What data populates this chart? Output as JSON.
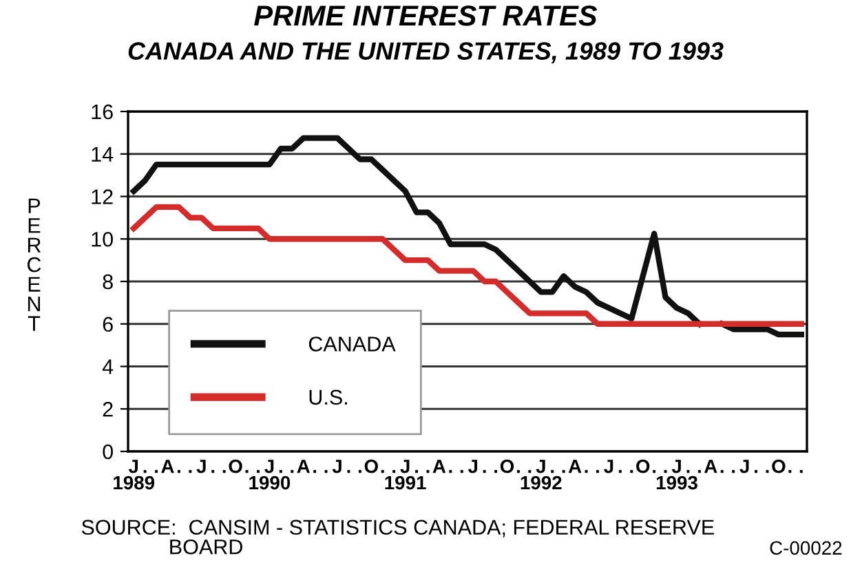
{
  "chart_data": {
    "type": "line",
    "title": "PRIME INTEREST RATES",
    "subtitle": "CANADA AND THE UNITED STATES, 1989 TO 1993",
    "ylabel": "PERCENT",
    "categories": [
      "J\n1989",
      ".",
      ".",
      "A",
      ".",
      ".",
      "J",
      ".",
      ".",
      "O",
      ".",
      ".",
      "J\n1990",
      ".",
      ".",
      "A",
      ".",
      ".",
      "J",
      ".",
      ".",
      "O",
      ".",
      ".",
      "J\n1991",
      ".",
      ".",
      "A",
      ".",
      ".",
      "J",
      ".",
      ".",
      "O",
      ".",
      ".",
      "J\n1992",
      ".",
      ".",
      "A",
      ".",
      ".",
      "J",
      ".",
      ".",
      "O",
      ".",
      ".",
      "J\n1993",
      ".",
      ".",
      "A",
      ".",
      ".",
      "J",
      ".",
      ".",
      "O",
      ".",
      "."
    ],
    "series": [
      {
        "name": "CANADA",
        "color": "#111111",
        "values": [
          12.25,
          12.75,
          13.5,
          13.5,
          13.5,
          13.5,
          13.5,
          13.5,
          13.5,
          13.5,
          13.5,
          13.5,
          13.5,
          14.25,
          14.25,
          14.75,
          14.75,
          14.75,
          14.75,
          14.25,
          13.75,
          13.75,
          13.25,
          12.75,
          12.25,
          11.25,
          11.25,
          10.75,
          9.75,
          9.75,
          9.75,
          9.75,
          9.5,
          9.0,
          8.5,
          8.0,
          7.5,
          7.5,
          8.25,
          7.75,
          7.5,
          7.0,
          6.75,
          6.5,
          6.25,
          8.25,
          10.25,
          7.25,
          6.75,
          6.5,
          6.0,
          null,
          6.0,
          5.75,
          5.75,
          5.75,
          5.75,
          5.5,
          5.5,
          5.5
        ]
      },
      {
        "name": "U.S.",
        "color": "#d42b2b",
        "values": [
          10.5,
          11.0,
          11.5,
          11.5,
          11.5,
          11.0,
          11.0,
          10.5,
          10.5,
          10.5,
          10.5,
          10.5,
          10.0,
          10.0,
          10.0,
          10.0,
          10.0,
          10.0,
          10.0,
          10.0,
          10.0,
          10.0,
          10.0,
          9.5,
          9.0,
          9.0,
          9.0,
          8.5,
          8.5,
          8.5,
          8.5,
          8.0,
          8.0,
          7.5,
          7.0,
          6.5,
          6.5,
          6.5,
          6.5,
          6.5,
          6.5,
          6.0,
          6.0,
          6.0,
          6.0,
          6.0,
          6.0,
          6.0,
          6.0,
          6.0,
          6.0,
          6.0,
          6.0,
          6.0,
          6.0,
          6.0,
          6.0,
          6.0,
          6.0,
          6.0
        ]
      }
    ],
    "ylim": [
      0,
      16
    ],
    "yticks": [
      0,
      2,
      4,
      6,
      8,
      10,
      12,
      14,
      16
    ],
    "grid": "y",
    "legend": "lower left",
    "marker": "none",
    "line_style": "solid",
    "annotations": [
      "SOURCE:  CANSIM - STATISTICS CANADA; FEDERAL RESERVE\n               BOARD",
      "C-00022"
    ]
  }
}
